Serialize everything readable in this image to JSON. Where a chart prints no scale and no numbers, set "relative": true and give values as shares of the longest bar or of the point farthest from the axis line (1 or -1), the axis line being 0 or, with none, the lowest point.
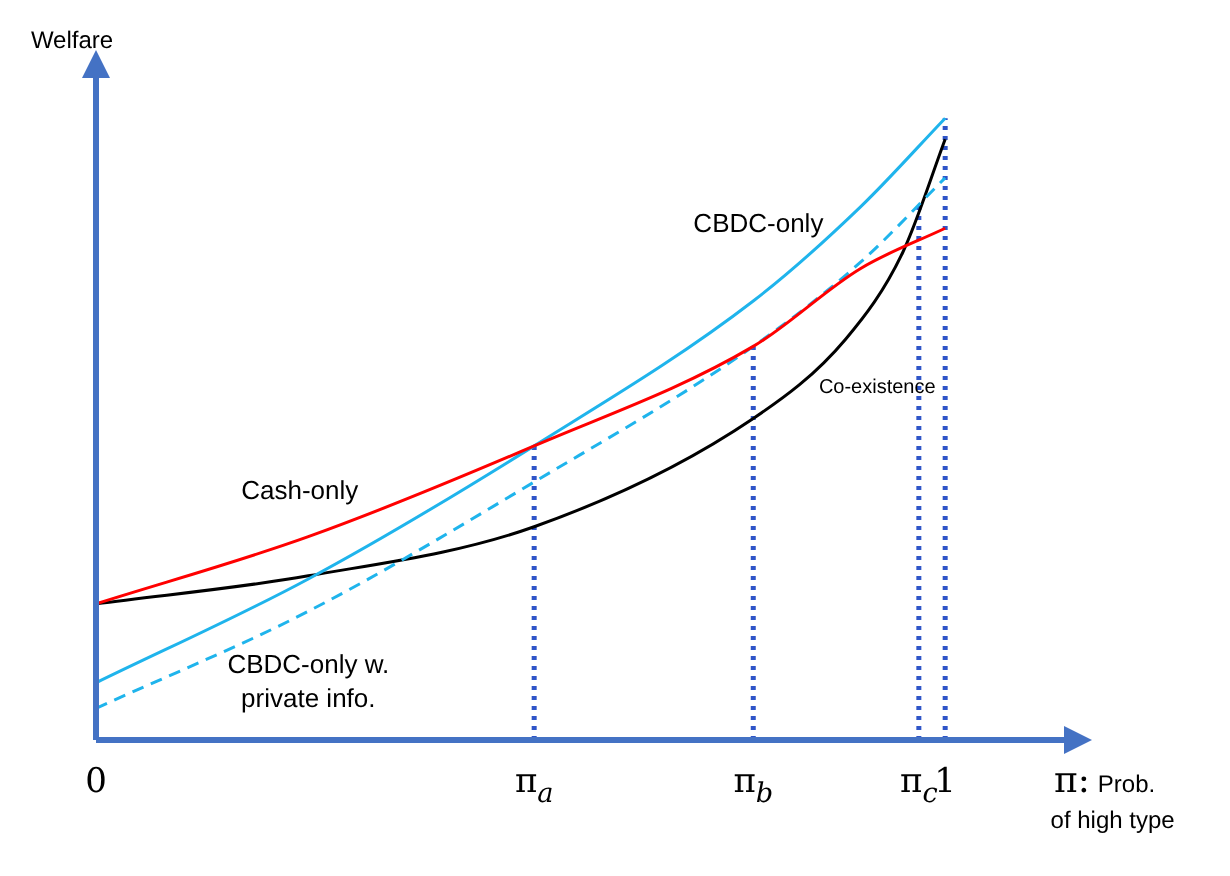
{
  "chart_data": {
    "type": "line",
    "relative": true,
    "ylabel": "Welfare",
    "xlabel": "π: Prob. of high type",
    "xlim": [
      0,
      1.147
    ],
    "xticks": [
      0,
      {
        "value": 0.516,
        "label": "π$_{a}$"
      },
      {
        "value": 0.774,
        "label": "π$_{b}$"
      },
      {
        "value": 0.969,
        "label": "π$_{c}$"
      },
      1
    ],
    "legend": false,
    "grid": false,
    "marker": "none",
    "ref_lines": [
      {
        "axis": "x",
        "value": 0.516,
        "color": "#2f55c8",
        "line_style": "dotted"
      },
      {
        "axis": "x",
        "value": 0.774,
        "color": "#2f55c8",
        "line_style": "dotted"
      },
      {
        "axis": "x",
        "value": 0.969,
        "color": "#2f55c8",
        "line_style": "dotted"
      },
      {
        "axis": "x",
        "value": 1,
        "color": "#2f55c8",
        "line_style": "dotted"
      }
    ],
    "series": [
      {
        "name": "Cash-only",
        "color": "#ff0000",
        "line_style": "solid",
        "x": [
          0,
          0.25,
          0.516,
          0.774,
          0.9,
          1
        ],
        "values": [
          0.219,
          0.327,
          0.473,
          0.633,
          0.758,
          0.823
        ]
      },
      {
        "name": "CBDC-only",
        "color": "#1fb4ec",
        "line_style": "solid",
        "x": [
          0,
          0.25,
          0.516,
          0.774,
          0.9,
          1
        ],
        "values": [
          0.092,
          0.259,
          0.473,
          0.706,
          0.857,
          1
        ]
      },
      {
        "name": "CBDC-only w. private info.",
        "color": "#1fb4ec",
        "line_style": "dashed",
        "x": [
          0,
          0.25,
          0.516,
          0.774,
          0.9,
          1
        ],
        "values": [
          0.051,
          0.207,
          0.415,
          0.633,
          0.768,
          0.904
        ]
      },
      {
        "name": "Co-existence",
        "color": "#000000",
        "line_style": "solid",
        "x": [
          0,
          0.25,
          0.516,
          0.774,
          0.883,
          0.95,
          1
        ],
        "values": [
          0.219,
          0.264,
          0.343,
          0.517,
          0.645,
          0.784,
          0.966
        ]
      }
    ]
  }
}
